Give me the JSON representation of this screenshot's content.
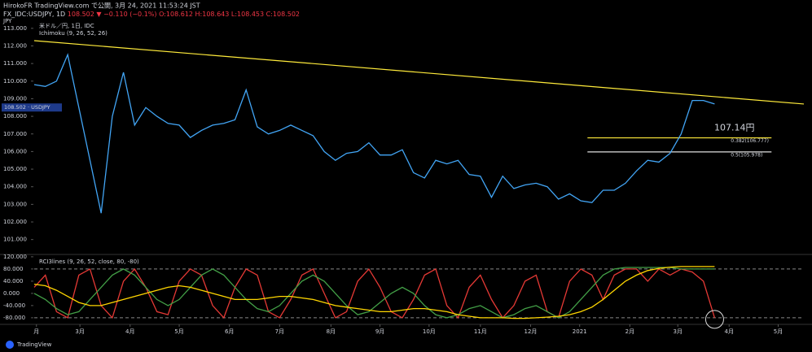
{
  "header": {
    "line1": "HirokoFR TradingView.com で公開, 3月 24, 2021 11:53:24 JST",
    "line2": {
      "symbol": "FX_IDC:USDJPY, 1D",
      "change": "108.502 ▼ −0.110 (−0.1%)",
      "ohlc": "O:108.612 H:108.643 L:108.453 C:108.502"
    }
  },
  "footer": "TradingView",
  "chart_data": [
    {
      "type": "line",
      "unit_label": "JPY",
      "legend": [
        "米ドル／円, 1日, IDC",
        "Ichimoku (9, 26, 52, 26)"
      ],
      "price_tag": {
        "value": 108.502,
        "label": "108.502 · USDJPY"
      },
      "x": [
        0,
        1,
        2,
        3,
        4,
        5,
        6,
        7,
        8,
        9,
        10,
        11,
        12,
        13,
        14,
        15,
        16,
        17,
        18,
        19,
        20,
        21,
        22,
        23,
        24,
        25,
        26,
        27,
        28,
        29,
        30,
        31,
        32,
        33,
        34,
        35,
        36,
        37,
        38,
        39,
        40,
        41,
        42,
        43,
        44,
        45,
        46,
        47,
        48,
        49,
        50,
        51,
        52,
        53,
        54,
        55,
        56,
        57,
        58,
        59,
        60,
        61
      ],
      "xlim": [
        0,
        69
      ],
      "ylim": [
        100.2,
        113.5
      ],
      "yticks": [
        {
          "value": 113,
          "label": "113.000"
        },
        {
          "value": 112,
          "label": "112.000"
        },
        {
          "value": 111,
          "label": "111.000"
        },
        {
          "value": 110,
          "label": "110.000"
        },
        {
          "value": 109,
          "label": "109.000"
        },
        {
          "value": 108,
          "label": "108.000"
        },
        {
          "value": 107,
          "label": "107.000"
        },
        {
          "value": 106,
          "label": "106.000"
        },
        {
          "value": 105,
          "label": "105.000"
        },
        {
          "value": 104,
          "label": "104.000"
        },
        {
          "value": 103,
          "label": "103.000"
        },
        {
          "value": 102,
          "label": "102.000"
        },
        {
          "value": 101,
          "label": "101.000"
        }
      ],
      "series": [
        {
          "color": "#42a5f5",
          "values": [
            109.8,
            109.7,
            110.0,
            111.5,
            108.5,
            105.5,
            102.5,
            108.0,
            110.5,
            107.5,
            108.5,
            108.0,
            107.6,
            107.5,
            106.8,
            107.2,
            107.5,
            107.6,
            107.8,
            109.5,
            107.4,
            107.0,
            107.2,
            107.5,
            107.2,
            106.9,
            106.0,
            105.5,
            105.9,
            106.0,
            106.5,
            105.8,
            105.8,
            106.1,
            104.8,
            104.5,
            105.5,
            105.3,
            105.5,
            104.7,
            104.6,
            103.4,
            104.6,
            103.9,
            104.1,
            104.2,
            104.0,
            103.3,
            103.6,
            103.2,
            103.1,
            103.8,
            103.8,
            104.2,
            104.9,
            105.5,
            105.4,
            105.9,
            107.0,
            108.9,
            108.9,
            108.7
          ]
        }
      ],
      "trendline": {
        "color": "#ffeb3b",
        "x": [
          0,
          69
        ],
        "values": [
          112.3,
          108.7
        ]
      },
      "levels": [
        {
          "label": "0.382(106.777)",
          "value": 106.777,
          "x": [
            49.6,
            66.1
          ],
          "color": "#ffeb3b"
        },
        {
          "label": "0.5(105.978)",
          "value": 105.978,
          "x": [
            49.6,
            66.1
          ],
          "color": "#e0e0e0"
        }
      ],
      "annotation": {
        "text": "107.14円",
        "value": 107.14,
        "color": "#f23645"
      }
    },
    {
      "type": "line",
      "title": "RCI3lines (9, 26, 52, close, 80, -80)",
      "x": [
        0,
        1,
        2,
        3,
        4,
        5,
        6,
        7,
        8,
        9,
        10,
        11,
        12,
        13,
        14,
        15,
        16,
        17,
        18,
        19,
        20,
        21,
        22,
        23,
        24,
        25,
        26,
        27,
        28,
        29,
        30,
        31,
        32,
        33,
        34,
        35,
        36,
        37,
        38,
        39,
        40,
        41,
        42,
        43,
        44,
        45,
        46,
        47,
        48,
        49,
        50,
        51,
        52,
        53,
        54,
        55,
        56,
        57,
        58,
        59,
        60,
        61
      ],
      "xlim": [
        0,
        69
      ],
      "ylim": [
        -99,
        125
      ],
      "yticks": [
        {
          "value": 120,
          "label": "120.000"
        },
        {
          "value": 80,
          "label": "80.000"
        },
        {
          "value": 40,
          "label": "40.000"
        },
        {
          "value": 0,
          "label": "0.000"
        },
        {
          "value": -40,
          "label": "-40.000"
        },
        {
          "value": -80,
          "label": "-80.000"
        }
      ],
      "bands": [
        80,
        -80
      ],
      "xticks": [
        {
          "value": 0.2,
          "label": "月"
        },
        {
          "value": 4.1,
          "label": "3月"
        },
        {
          "value": 8.6,
          "label": "4月"
        },
        {
          "value": 13.0,
          "label": "5月"
        },
        {
          "value": 17.5,
          "label": "6月"
        },
        {
          "value": 22.0,
          "label": "7月"
        },
        {
          "value": 26.6,
          "label": "8月"
        },
        {
          "value": 31.0,
          "label": "9月"
        },
        {
          "value": 35.4,
          "label": "10月"
        },
        {
          "value": 40.0,
          "label": "11月"
        },
        {
          "value": 44.5,
          "label": "12月"
        },
        {
          "value": 48.9,
          "label": "2021"
        },
        {
          "value": 53.4,
          "label": "2月"
        },
        {
          "value": 57.7,
          "label": "3月"
        },
        {
          "value": 62.3,
          "label": "4月"
        },
        {
          "value": 66.7,
          "label": "5月"
        }
      ],
      "series": [
        {
          "color": "#e53935",
          "values": [
            20,
            60,
            -60,
            -80,
            60,
            80,
            -40,
            -80,
            40,
            80,
            20,
            -60,
            -70,
            40,
            80,
            60,
            -40,
            -80,
            20,
            80,
            60,
            -60,
            -80,
            -20,
            60,
            80,
            0,
            -80,
            -60,
            40,
            80,
            20,
            -60,
            -80,
            -20,
            60,
            80,
            -40,
            -80,
            20,
            60,
            -20,
            -80,
            -40,
            40,
            60,
            -60,
            -80,
            40,
            80,
            60,
            -20,
            60,
            80,
            80,
            40,
            80,
            60,
            80,
            70,
            40,
            -80
          ]
        },
        {
          "color": "#43a047",
          "values": [
            0,
            -20,
            -50,
            -70,
            -60,
            -20,
            20,
            60,
            80,
            60,
            20,
            -20,
            -40,
            -20,
            20,
            60,
            80,
            60,
            20,
            -20,
            -50,
            -60,
            -40,
            0,
            40,
            60,
            40,
            0,
            -40,
            -70,
            -60,
            -30,
            0,
            20,
            0,
            -40,
            -70,
            -80,
            -70,
            -50,
            -40,
            -60,
            -80,
            -70,
            -50,
            -40,
            -60,
            -80,
            -60,
            -20,
            20,
            60,
            80,
            85,
            85,
            85,
            85,
            85,
            80,
            80,
            80,
            80
          ]
        },
        {
          "color": "#ffd600",
          "values": [
            30,
            25,
            10,
            -10,
            -30,
            -40,
            -40,
            -30,
            -20,
            -10,
            0,
            10,
            20,
            25,
            20,
            10,
            0,
            -10,
            -20,
            -20,
            -20,
            -15,
            -10,
            -10,
            -15,
            -20,
            -30,
            -40,
            -45,
            -50,
            -55,
            -60,
            -60,
            -55,
            -50,
            -50,
            -55,
            -60,
            -70,
            -75,
            -80,
            -80,
            -80,
            -82,
            -82,
            -80,
            -78,
            -75,
            -70,
            -60,
            -45,
            -20,
            10,
            40,
            60,
            75,
            82,
            86,
            88,
            88,
            88,
            88
          ]
        }
      ]
    }
  ]
}
